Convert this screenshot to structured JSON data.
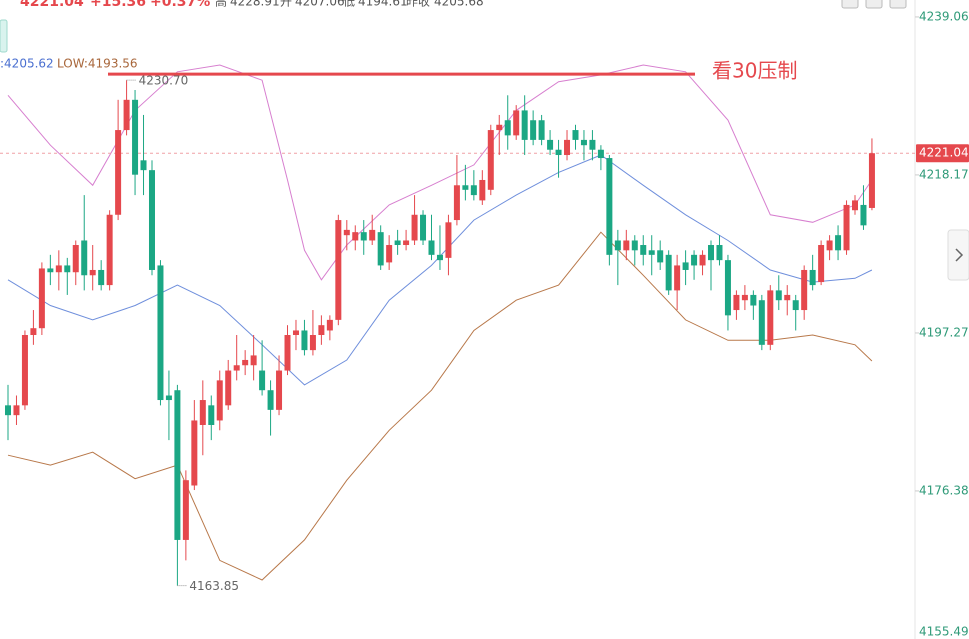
{
  "chart_data": {
    "type": "candlestick",
    "header": {
      "price": "4221.04",
      "change": "+15.36",
      "change_pct": "+0.37%",
      "high_label": "高",
      "high": "4228.91",
      "open_label": "开",
      "open": "4207.06",
      "low_label": "低",
      "low": "4194.61",
      "prev_label": "昨收",
      "prev": "4205.68"
    },
    "legend": {
      "mid": ":4205.62",
      "low": "LOW:4193.56"
    },
    "last_price": 4221.04,
    "resistance": {
      "value": 4231.5,
      "label": "看30压制"
    },
    "annotations": [
      {
        "text": "4230.70",
        "candle": 14,
        "value": 4230.7
      },
      {
        "text": "4163.85",
        "candle": 20,
        "value": 4163.85
      }
    ],
    "up_color": "#e5484d",
    "down_color": "#1ba784",
    "ylim": [
      4156.8,
      4241.3
    ],
    "yticks": [
      4239.06,
      4218.17,
      4197.27,
      4176.38,
      4155.49
    ],
    "candles": [
      [
        4187.7,
        4190.4,
        4183.1,
        4186.4
      ],
      [
        4186.4,
        4189.0,
        4185.1,
        4187.7
      ],
      [
        4187.7,
        4197.6,
        4187.1,
        4197.0
      ],
      [
        4197.0,
        4200.3,
        4195.7,
        4197.9
      ],
      [
        4197.9,
        4206.6,
        4197.0,
        4205.8
      ],
      [
        4205.8,
        4207.6,
        4203.6,
        4205.3
      ],
      [
        4205.3,
        4208.2,
        4202.9,
        4206.2
      ],
      [
        4206.2,
        4207.2,
        4202.3,
        4205.3
      ],
      [
        4205.3,
        4209.5,
        4203.6,
        4208.9
      ],
      [
        4209.5,
        4215.5,
        4202.9,
        4204.9
      ],
      [
        4204.9,
        4208.9,
        4202.9,
        4205.6
      ],
      [
        4205.6,
        4206.9,
        4202.9,
        4203.6
      ],
      [
        4203.6,
        4213.5,
        4202.9,
        4212.9
      ],
      [
        4212.9,
        4228.1,
        4212.2,
        4224.1
      ],
      [
        4224.1,
        4230.7,
        4223.4,
        4228.1
      ],
      [
        4228.1,
        4229.4,
        4215.5,
        4218.2
      ],
      [
        4220.1,
        4226.1,
        4215.5,
        4218.8
      ],
      [
        4218.8,
        4220.1,
        4204.9,
        4205.6
      ],
      [
        4206.2,
        4206.9,
        4187.7,
        4188.4
      ],
      [
        4189.0,
        4192.3,
        4183.1,
        4188.4
      ],
      [
        4189.7,
        4190.4,
        4163.85,
        4169.9
      ],
      [
        4169.9,
        4179.1,
        4167.2,
        4177.8
      ],
      [
        4177.1,
        4188.4,
        4176.5,
        4185.7
      ],
      [
        4185.1,
        4191.0,
        4181.1,
        4188.4
      ],
      [
        4187.7,
        4189.0,
        4183.1,
        4185.1
      ],
      [
        4185.7,
        4192.3,
        4184.4,
        4191.0
      ],
      [
        4187.7,
        4193.7,
        4187.1,
        4192.3
      ],
      [
        4192.3,
        4197.0,
        4191.0,
        4193.0
      ],
      [
        4193.0,
        4195.0,
        4191.7,
        4193.7
      ],
      [
        4193.0,
        4197.0,
        4191.0,
        4194.3
      ],
      [
        4192.3,
        4196.3,
        4189.0,
        4189.7
      ],
      [
        4189.7,
        4191.0,
        4183.7,
        4187.1
      ],
      [
        4187.1,
        4194.3,
        4186.4,
        4192.3
      ],
      [
        4192.3,
        4198.3,
        4191.7,
        4197.0
      ],
      [
        4197.0,
        4199.0,
        4195.0,
        4197.6
      ],
      [
        4197.6,
        4199.0,
        4194.3,
        4195.0
      ],
      [
        4195.0,
        4200.3,
        4194.3,
        4197.0
      ],
      [
        4197.0,
        4199.6,
        4195.7,
        4198.3
      ],
      [
        4197.6,
        4199.6,
        4196.3,
        4199.0
      ],
      [
        4199.0,
        4212.9,
        4198.3,
        4212.2
      ],
      [
        4210.2,
        4212.2,
        4208.2,
        4210.9
      ],
      [
        4209.5,
        4211.5,
        4208.2,
        4210.6
      ],
      [
        4210.6,
        4212.2,
        4207.6,
        4209.5
      ],
      [
        4209.5,
        4212.9,
        4208.9,
        4210.9
      ],
      [
        4210.6,
        4211.5,
        4205.6,
        4206.2
      ],
      [
        4206.6,
        4210.2,
        4205.6,
        4208.9
      ],
      [
        4209.5,
        4210.9,
        4207.6,
        4208.9
      ],
      [
        4208.9,
        4210.9,
        4208.2,
        4209.5
      ],
      [
        4209.5,
        4215.5,
        4208.9,
        4212.9
      ],
      [
        4212.9,
        4213.5,
        4208.9,
        4209.5
      ],
      [
        4209.5,
        4212.9,
        4206.9,
        4207.6
      ],
      [
        4207.6,
        4211.5,
        4205.6,
        4206.9
      ],
      [
        4207.2,
        4212.9,
        4204.9,
        4211.9
      ],
      [
        4212.2,
        4220.8,
        4211.5,
        4216.8
      ],
      [
        4216.8,
        4219.5,
        4214.8,
        4216.2
      ],
      [
        4216.8,
        4218.8,
        4214.8,
        4215.5
      ],
      [
        4214.8,
        4218.8,
        4214.2,
        4217.5
      ],
      [
        4216.2,
        4224.8,
        4215.5,
        4224.1
      ],
      [
        4224.1,
        4226.1,
        4220.8,
        4224.8
      ],
      [
        4225.4,
        4228.7,
        4221.5,
        4223.4
      ],
      [
        4223.4,
        4227.4,
        4222.8,
        4226.7
      ],
      [
        4226.7,
        4228.7,
        4220.8,
        4222.8
      ],
      [
        4225.4,
        4226.7,
        4222.1,
        4222.8
      ],
      [
        4225.4,
        4226.1,
        4222.1,
        4222.8
      ],
      [
        4222.8,
        4224.1,
        4220.8,
        4221.5
      ],
      [
        4221.5,
        4222.8,
        4217.8,
        4220.8
      ],
      [
        4220.8,
        4224.1,
        4220.1,
        4222.8
      ],
      [
        4224.1,
        4224.8,
        4221.5,
        4222.8
      ],
      [
        4222.8,
        4224.1,
        4220.1,
        4222.1
      ],
      [
        4222.8,
        4224.1,
        4220.1,
        4221.5
      ],
      [
        4221.5,
        4222.1,
        4218.8,
        4220.4
      ],
      [
        4220.4,
        4220.8,
        4206.2,
        4207.6
      ],
      [
        4209.5,
        4210.9,
        4203.6,
        4208.2
      ],
      [
        4208.2,
        4210.9,
        4206.9,
        4209.5
      ],
      [
        4209.5,
        4210.2,
        4206.2,
        4208.2
      ],
      [
        4208.9,
        4210.2,
        4206.2,
        4207.6
      ],
      [
        4208.2,
        4210.2,
        4204.9,
        4207.6
      ],
      [
        4208.2,
        4209.5,
        4205.6,
        4206.6
      ],
      [
        4207.6,
        4208.2,
        4202.3,
        4202.9
      ],
      [
        4202.9,
        4207.6,
        4200.3,
        4206.2
      ],
      [
        4206.6,
        4208.2,
        4203.6,
        4205.6
      ],
      [
        4207.6,
        4208.2,
        4204.3,
        4206.2
      ],
      [
        4206.2,
        4208.2,
        4204.9,
        4207.6
      ],
      [
        4208.9,
        4209.5,
        4202.9,
        4206.9
      ],
      [
        4208.9,
        4210.2,
        4206.2,
        4206.9
      ],
      [
        4206.9,
        4207.6,
        4197.6,
        4199.6
      ],
      [
        4200.3,
        4202.9,
        4199.0,
        4202.3
      ],
      [
        4201.6,
        4203.6,
        4200.3,
        4202.3
      ],
      [
        4202.3,
        4202.9,
        4199.0,
        4200.9
      ],
      [
        4201.6,
        4202.3,
        4195.0,
        4195.7
      ],
      [
        4195.7,
        4203.6,
        4195.0,
        4202.9
      ],
      [
        4202.9,
        4204.9,
        4200.3,
        4201.6
      ],
      [
        4201.6,
        4203.6,
        4199.6,
        4202.3
      ],
      [
        4201.6,
        4202.3,
        4197.6,
        4200.3
      ],
      [
        4200.3,
        4206.2,
        4199.0,
        4205.6
      ],
      [
        4205.6,
        4207.6,
        4202.9,
        4203.6
      ],
      [
        4204.0,
        4209.5,
        4203.6,
        4208.9
      ],
      [
        4208.2,
        4210.2,
        4206.9,
        4209.5
      ],
      [
        4210.2,
        4211.5,
        4206.9,
        4208.2
      ],
      [
        4208.2,
        4214.8,
        4207.6,
        4214.2
      ],
      [
        4213.5,
        4215.5,
        4212.9,
        4214.8
      ],
      [
        4214.2,
        4216.8,
        4210.9,
        4211.5
      ],
      [
        4213.8,
        4223.0,
        4213.5,
        4221.04
      ]
    ],
    "bands": [
      {
        "color": "#d77fcf",
        "x": [
          0,
          5,
          10,
          15,
          20,
          25,
          30,
          33,
          35,
          37,
          40,
          45,
          50,
          55,
          60,
          65,
          70,
          75,
          80,
          85,
          90,
          95,
          100,
          102
        ],
        "values": [
          4228.7,
          4222.1,
          4216.8,
          4226.7,
          4231.8,
          4232.7,
          4230.7,
          4217.5,
          4208.2,
          4204.3,
          4208.9,
          4214.2,
          4216.8,
          4219.5,
          4226.7,
          4230.5,
          4231.4,
          4232.7,
          4231.8,
          4225.4,
          4212.9,
          4211.9,
          4214.2,
          4217.5
        ]
      },
      {
        "color": "#6f8fdc",
        "x": [
          0,
          5,
          10,
          15,
          20,
          25,
          30,
          35,
          40,
          45,
          50,
          55,
          60,
          65,
          70,
          75,
          80,
          85,
          90,
          95,
          100,
          102
        ],
        "values": [
          4204.3,
          4200.9,
          4199.0,
          4200.9,
          4203.6,
          4200.9,
          4195.7,
          4190.4,
          4193.7,
          4201.6,
          4206.2,
          4212.2,
          4215.5,
          4218.5,
          4220.8,
          4216.8,
          4212.9,
          4209.5,
          4205.6,
          4204.0,
          4204.5,
          4205.6
        ]
      },
      {
        "color": "#b8784a",
        "x": [
          0,
          5,
          10,
          15,
          20,
          25,
          30,
          35,
          40,
          45,
          50,
          55,
          60,
          65,
          70,
          75,
          80,
          85,
          90,
          95,
          100,
          102
        ],
        "values": [
          4181.1,
          4179.8,
          4181.5,
          4178.0,
          4179.8,
          4167.2,
          4164.6,
          4169.9,
          4177.8,
          4184.4,
          4189.7,
          4197.6,
          4201.6,
          4203.6,
          4210.6,
          4204.9,
          4199.0,
          4196.3,
          4196.3,
          4197.0,
          4195.7,
          4193.56
        ]
      }
    ]
  }
}
